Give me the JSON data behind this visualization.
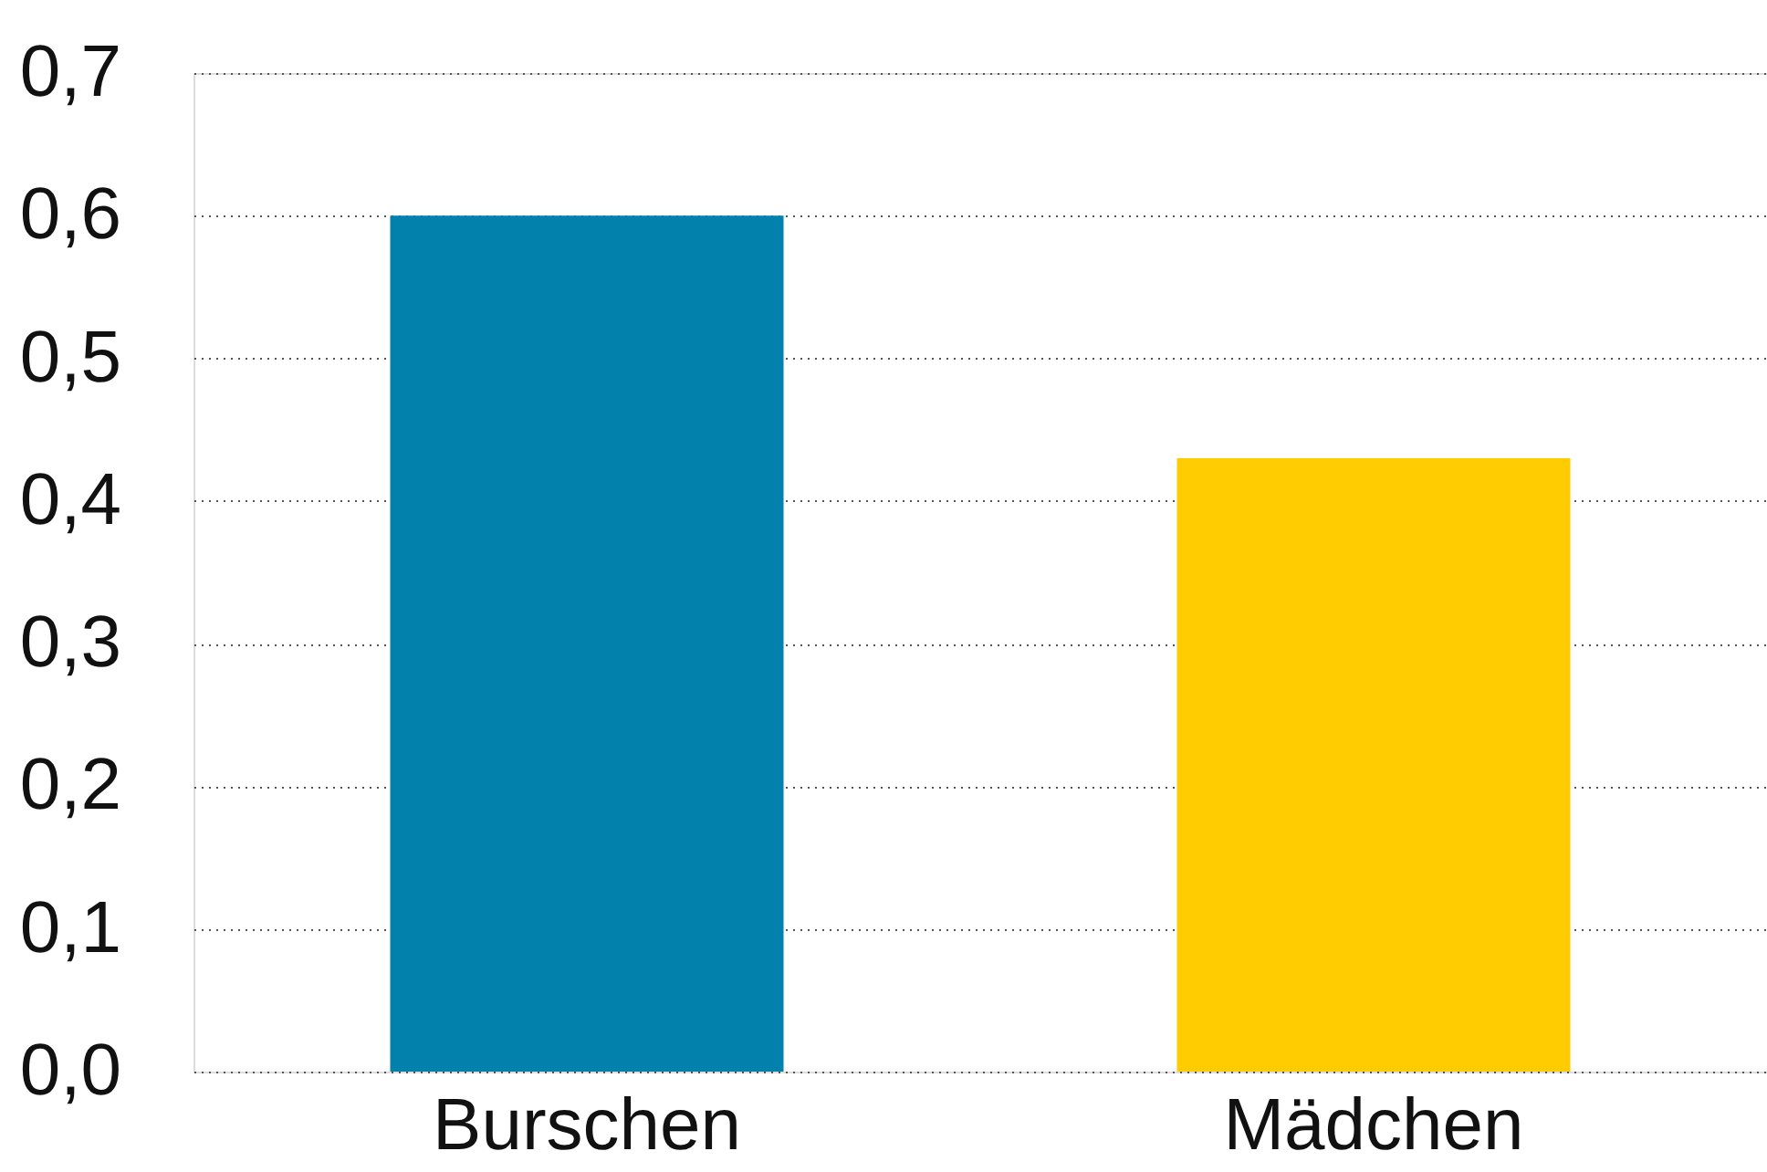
{
  "chart_data": {
    "type": "bar",
    "categories": [
      "Burschen",
      "Mädchen"
    ],
    "values": [
      0.6,
      0.43
    ],
    "colors": [
      "#0281ad",
      "#fecc00"
    ],
    "ylim": [
      0,
      0.7
    ],
    "yticks": [
      {
        "value": 0,
        "label": "0,0"
      },
      {
        "value": 0.1,
        "label": "0,1"
      },
      {
        "value": 0.2,
        "label": "0,2"
      },
      {
        "value": 0.3,
        "label": "0,3"
      },
      {
        "value": 0.4,
        "label": "0,4"
      },
      {
        "value": 0.5,
        "label": "0,5"
      },
      {
        "value": 0.6,
        "label": "0,6"
      },
      {
        "value": 0.7,
        "label": "0,7"
      }
    ],
    "grid": "y"
  }
}
